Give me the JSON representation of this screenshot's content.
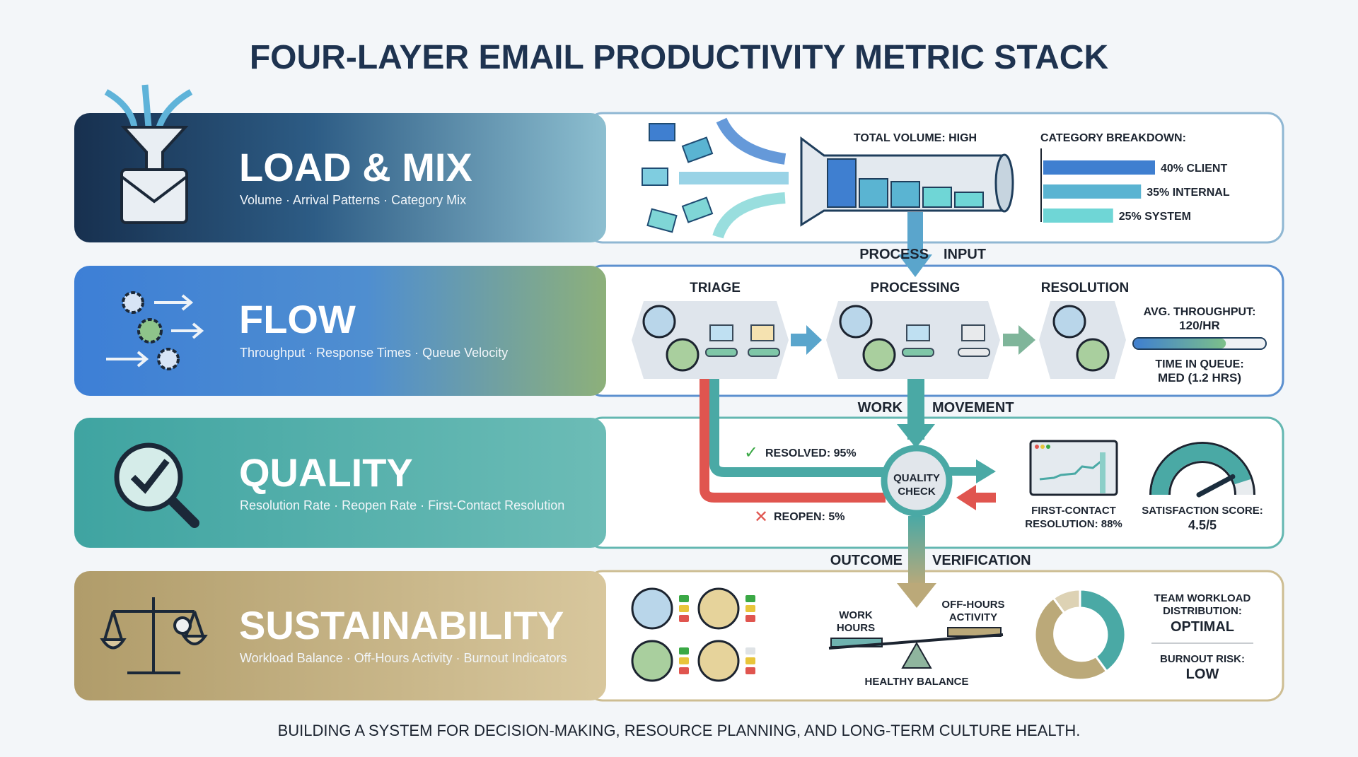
{
  "title": "FOUR-LAYER EMAIL PRODUCTIVITY METRIC STACK",
  "footer": "BUILDING A SYSTEM FOR DECISION-MAKING, RESOURCE PLANNING, AND LONG-TERM CULTURE HEALTH.",
  "colors": {
    "navy": "#1d3a5c",
    "blue": "#3f7fd0",
    "teal": "#4aa9a5",
    "tan": "#b8a473",
    "red": "#e0554f",
    "green": "#3aa845"
  },
  "layers": [
    {
      "name": "LOAD & MIX",
      "subtitle": "Volume · Arrival Patterns · Category Mix",
      "icon": "funnel-envelope-icon"
    },
    {
      "name": "FLOW",
      "subtitle": "Throughput · Response Times · Queue Velocity",
      "icon": "gears-arrows-icon"
    },
    {
      "name": "QUALITY",
      "subtitle": "Resolution Rate · Reopen Rate · First-Contact Resolution",
      "icon": "magnifier-check-icon"
    },
    {
      "name": "SUSTAINABILITY",
      "subtitle": "Workload Balance · Off-Hours Activity · Burnout Indicators",
      "icon": "balance-scale-icon"
    }
  ],
  "connectors": [
    {
      "left": "PROCESS",
      "right": "INPUT"
    },
    {
      "left": "WORK",
      "right": "MOVEMENT"
    },
    {
      "left": "OUTCOME",
      "right": "VERIFICATION"
    }
  ],
  "load": {
    "total_volume": "TOTAL VOLUME: HIGH",
    "category_title": "CATEGORY BREAKDOWN:",
    "categories": [
      {
        "label": "40% CLIENT",
        "percent": 40,
        "color": "#3f7fd0"
      },
      {
        "label": "35% INTERNAL",
        "percent": 35,
        "color": "#5ab4d2"
      },
      {
        "label": "25% SYSTEM",
        "percent": 25,
        "color": "#6fd6d6"
      }
    ]
  },
  "flow": {
    "stages": [
      "TRIAGE",
      "PROCESSING",
      "RESOLUTION"
    ],
    "throughput_label": "AVG. THROUGHPUT:",
    "throughput_value": "120/HR",
    "throughput_fill": 0.7,
    "queue_label": "TIME IN QUEUE:",
    "queue_value": "MED (1.2 HRS)"
  },
  "quality": {
    "resolved": "RESOLVED: 95%",
    "reopen": "REOPEN: 5%",
    "check_line1": "QUALITY",
    "check_line2": "CHECK",
    "fcr_line1": "FIRST-CONTACT",
    "fcr_line2": "RESOLUTION: 88%",
    "satisfaction_label": "SATISFACTION SCORE:",
    "satisfaction_value": "4.5/5",
    "satisfaction_score": 4.5
  },
  "sustainability": {
    "work_hours_1": "WORK",
    "work_hours_2": "HOURS",
    "off_hours_1": "OFF-HOURS",
    "off_hours_2": "ACTIVITY",
    "balance": "HEALTHY BALANCE",
    "workload_1": "TEAM WORKLOAD",
    "workload_2": "DISTRIBUTION:",
    "workload_value": "OPTIMAL",
    "burnout_label": "BURNOUT RISK:",
    "burnout_value": "LOW",
    "donut": [
      {
        "share": 40,
        "color": "#4aa9a5"
      },
      {
        "share": 50,
        "color": "#bba979"
      },
      {
        "share": 10,
        "color": "#ddd2b4"
      }
    ]
  }
}
